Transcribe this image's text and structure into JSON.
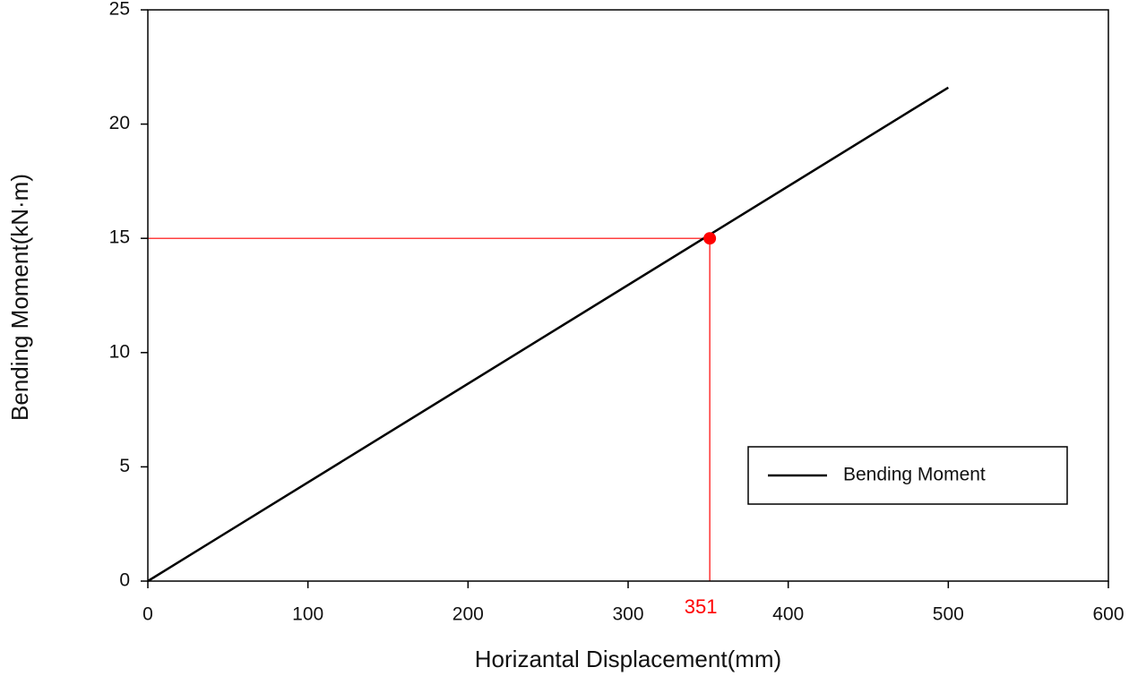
{
  "chart_data": {
    "type": "line",
    "x_label": "Horizantal Displacement(mm)",
    "y_label": "Bending Moment(kN·m)",
    "x": [
      0,
      500
    ],
    "series": [
      {
        "name": "Bending Moment",
        "color": "#000000",
        "values": [
          0,
          21.6
        ]
      }
    ],
    "marker": {
      "x": 351,
      "y": 15,
      "color": "#ff0000"
    },
    "xlim": [
      0,
      600
    ],
    "xticks": [
      0,
      100,
      200,
      300,
      400,
      500,
      600
    ],
    "ylim": [
      0,
      25
    ],
    "yticks": [
      0,
      5,
      10,
      15,
      20,
      25
    ],
    "grid": false,
    "legend": "lower right"
  }
}
